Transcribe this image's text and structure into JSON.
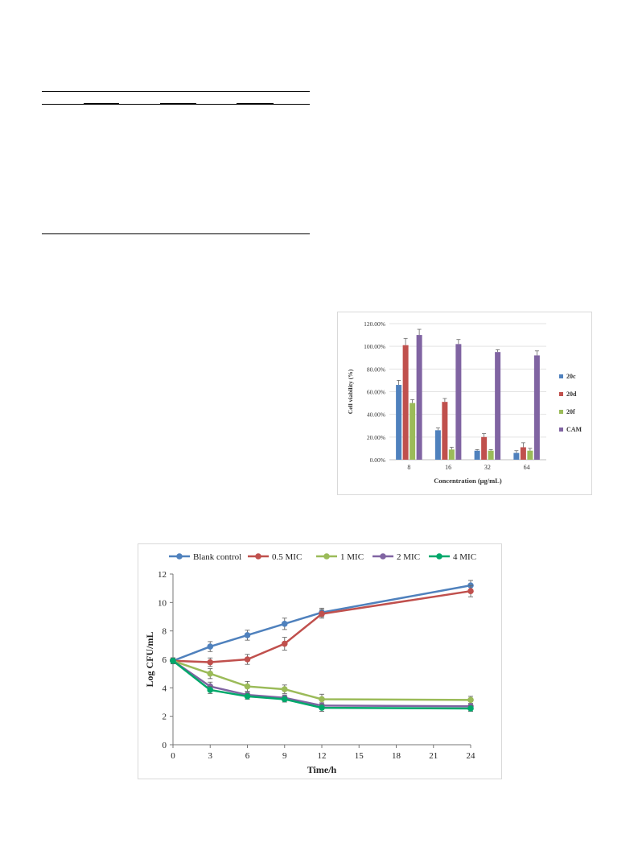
{
  "chart_data": [
    {
      "type": "bar",
      "title": "",
      "xlabel": "Concentration (μg/mL)",
      "ylabel": "Cell viability (%)",
      "ylim": [
        0,
        120
      ],
      "ytick_labels": [
        "0.00%",
        "20.00%",
        "40.00%",
        "60.00%",
        "80.00%",
        "100.00%",
        "120.00%"
      ],
      "categories": [
        "8",
        "16",
        "32",
        "64"
      ],
      "series": [
        {
          "name": "20c",
          "color": "#4f81bd",
          "values": [
            66,
            26,
            8,
            6
          ],
          "errors": [
            4,
            2,
            1,
            2
          ]
        },
        {
          "name": "20d",
          "color": "#c0504d",
          "values": [
            101,
            51,
            20,
            11
          ],
          "errors": [
            6,
            3,
            3,
            4
          ]
        },
        {
          "name": "20f",
          "color": "#9bbb59",
          "values": [
            50,
            9,
            8,
            8
          ],
          "errors": [
            3,
            2,
            1,
            2
          ]
        },
        {
          "name": "CAM",
          "color": "#8064a2",
          "values": [
            110,
            102,
            95,
            92
          ],
          "errors": [
            5,
            4,
            2,
            4
          ]
        }
      ],
      "legend": "right",
      "grid": "y"
    },
    {
      "type": "line",
      "title": "",
      "xlabel": "Time/h",
      "ylabel": "Log CFU/mL",
      "xlim": [
        0,
        24
      ],
      "ylim": [
        0,
        12
      ],
      "xticks": [
        0,
        3,
        6,
        9,
        12,
        15,
        18,
        21,
        24
      ],
      "xtick_labels": [
        "0",
        "3",
        "6",
        "9",
        "12",
        "15",
        "18",
        "21",
        "24"
      ],
      "yticks": [
        0,
        2,
        4,
        6,
        8,
        10,
        12
      ],
      "ytick_labels": [
        "0",
        "2",
        "4",
        "6",
        "8",
        "10",
        "12"
      ],
      "x": [
        0,
        3,
        6,
        9,
        12,
        24
      ],
      "series": [
        {
          "name": "Blank control",
          "color": "#4f81bd",
          "values": [
            5.9,
            6.9,
            7.7,
            8.5,
            9.3,
            11.2
          ],
          "errors": [
            0.2,
            0.35,
            0.35,
            0.4,
            0.3,
            0.35
          ]
        },
        {
          "name": "0.5 MIC",
          "color": "#c0504d",
          "values": [
            5.9,
            5.8,
            6.0,
            7.1,
            9.2,
            10.8
          ],
          "errors": [
            0.2,
            0.3,
            0.35,
            0.45,
            0.3,
            0.4
          ]
        },
        {
          "name": "1 MIC",
          "color": "#9bbb59",
          "values": [
            5.9,
            5.0,
            4.1,
            3.9,
            3.2,
            3.15
          ],
          "errors": [
            0.2,
            0.35,
            0.35,
            0.3,
            0.35,
            0.25
          ]
        },
        {
          "name": "2 MIC",
          "color": "#8064a2",
          "values": [
            5.9,
            4.1,
            3.5,
            3.3,
            2.75,
            2.7
          ],
          "errors": [
            0.2,
            0.3,
            0.2,
            0.2,
            0.2,
            0.2
          ]
        },
        {
          "name": "4 MIC",
          "color": "#00a86b",
          "values": [
            5.9,
            3.85,
            3.4,
            3.2,
            2.6,
            2.55
          ],
          "errors": [
            0.2,
            0.25,
            0.2,
            0.2,
            0.25,
            0.2
          ]
        }
      ],
      "legend": "top",
      "grid": "none"
    }
  ]
}
